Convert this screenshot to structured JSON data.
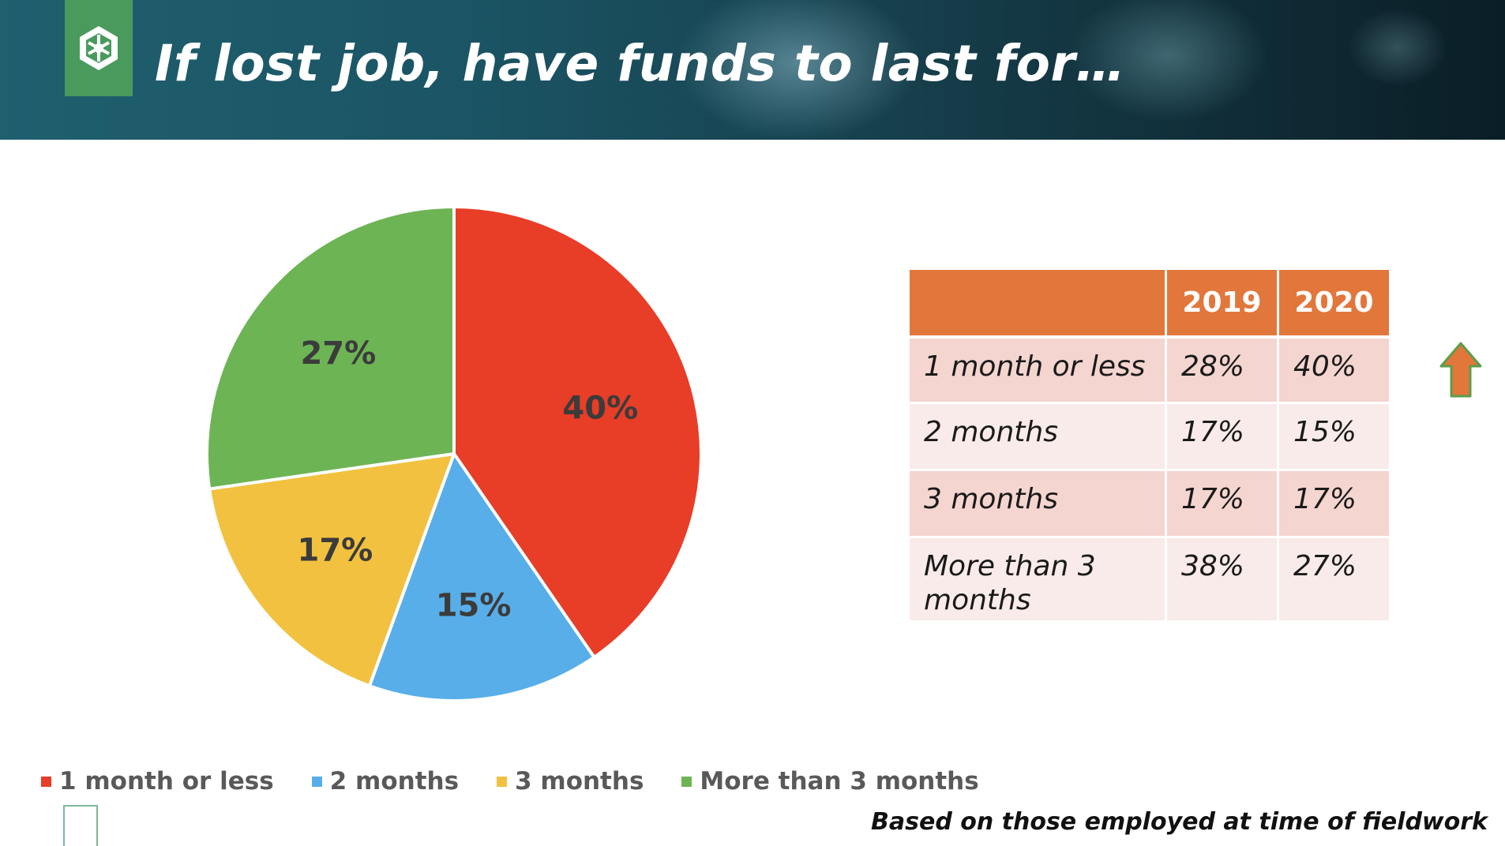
{
  "header": {
    "title": "If lost job, have funds to last for…"
  },
  "chart_data": {
    "type": "pie",
    "categories": [
      "1 month or less",
      "2 months",
      "3 months",
      "More than 3 months"
    ],
    "values": [
      40,
      15,
      17,
      27
    ],
    "labels": [
      "40%",
      "15%",
      "17%",
      "27%"
    ],
    "colors": [
      "#e83d27",
      "#58aee8",
      "#f2c140",
      "#6db455"
    ],
    "legend_position": "bottom"
  },
  "table": {
    "headers": [
      "",
      "2019",
      "2020"
    ],
    "rows": [
      {
        "label": "1 month or less",
        "y2019": "28%",
        "y2020": "40%"
      },
      {
        "label": "2 months",
        "y2019": "17%",
        "y2020": "15%"
      },
      {
        "label": "3 months",
        "y2019": "17%",
        "y2020": "17%"
      },
      {
        "label": "More than 3 months",
        "y2019": "38%",
        "y2020": "27%"
      }
    ],
    "header_color": "#e2773b",
    "arrow_color": "#e2773b"
  },
  "footnote": "Based on those employed at time of fieldwork"
}
